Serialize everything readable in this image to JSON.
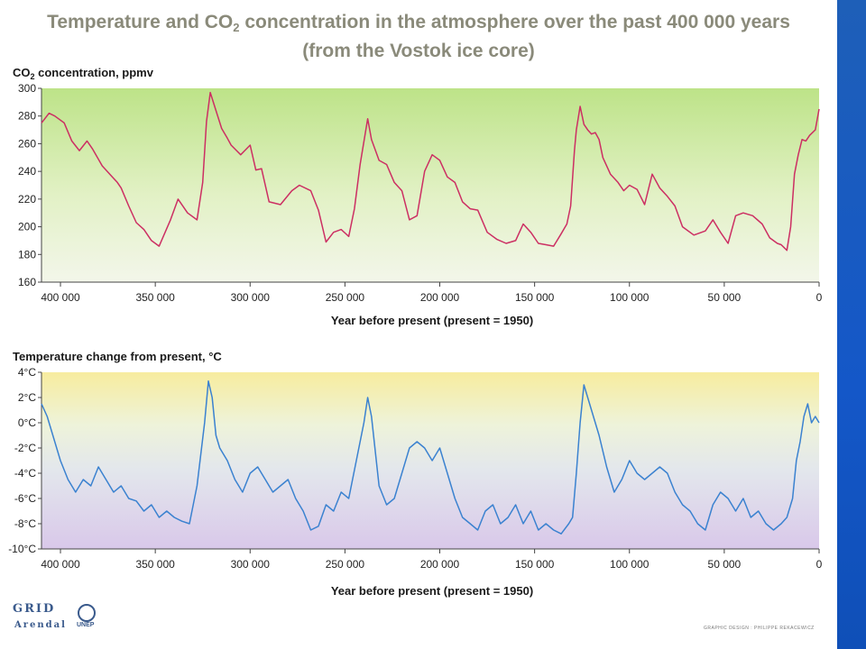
{
  "title_line1_pre": "Temperature and CO",
  "title_line1_sub": "2",
  "title_line1_post": " concentration in the atmosphere over the past 400 000 years",
  "title_line2": "(from the Vostok ice core)",
  "logo": {
    "grid": "GRID",
    "arendal": "Arendal",
    "unep": "UNEP"
  },
  "credit": "GRAPHIC DESIGN : PHILIPPE REKACEWICZ",
  "colors": {
    "co2_line": "#cc2f63",
    "temp_line": "#3b82d0",
    "right_bar": "#1457c8"
  },
  "chart_data": [
    {
      "type": "line",
      "ylabel_pre": "CO",
      "ylabel_sub": "2",
      "ylabel_post": " concentration, ppmv",
      "xlabel": "Year before present (present = 1950)",
      "xlim": [
        410000,
        0
      ],
      "ylim": [
        160,
        300
      ],
      "x_ticks": [
        400000,
        350000,
        300000,
        250000,
        200000,
        150000,
        100000,
        50000,
        0
      ],
      "x_tick_labels": [
        "400 000",
        "350 000",
        "300 000",
        "250 000",
        "200 000",
        "150 000",
        "100 000",
        "50 000",
        "0"
      ],
      "y_ticks": [
        160,
        180,
        200,
        220,
        240,
        260,
        280,
        300
      ],
      "y_tick_labels": [
        "160",
        "180",
        "200",
        "220",
        "240",
        "260",
        "280",
        "300"
      ],
      "grid": false,
      "series": [
        {
          "x": [
            410000,
            406000,
            403000,
            398000,
            394000,
            390000,
            386000,
            383000,
            378000,
            374000,
            370000,
            368000,
            364000,
            360000,
            356000,
            352000,
            348000,
            342000,
            338000,
            333000,
            328000,
            325000,
            323000,
            321000,
            318000,
            315000,
            312000,
            310000,
            305000,
            300000,
            297000,
            294000,
            290000,
            284000,
            278000,
            274000,
            268000,
            264000,
            260000,
            256000,
            252000,
            248000,
            245000,
            242000,
            238000,
            236000,
            232000,
            228000,
            224000,
            220000,
            216000,
            212000,
            208000,
            204000,
            200000,
            196000,
            192000,
            188000,
            184000,
            180000,
            175000,
            170000,
            165000,
            160000,
            156000,
            152000,
            148000,
            144000,
            140000,
            136000,
            133000,
            131000,
            129000,
            128000,
            126000,
            124000,
            122000,
            120000,
            118000,
            116000,
            114000,
            110000,
            106000,
            103000,
            100000,
            96000,
            92000,
            88000,
            84000,
            80000,
            76000,
            72000,
            66000,
            60000,
            56000,
            52000,
            48000,
            44000,
            40000,
            35000,
            30000,
            26000,
            22000,
            20000,
            17000,
            15000,
            13000,
            11000,
            9000,
            7000,
            5000,
            2000,
            0
          ],
          "y": [
            275,
            282,
            280,
            275,
            262,
            255,
            262,
            256,
            244,
            238,
            232,
            228,
            215,
            203,
            198,
            190,
            186,
            205,
            220,
            210,
            205,
            232,
            276,
            297,
            284,
            271,
            264,
            259,
            252,
            259,
            241,
            242,
            218,
            216,
            226,
            230,
            226,
            212,
            189,
            196,
            198,
            193,
            213,
            245,
            278,
            263,
            248,
            245,
            232,
            226,
            205,
            208,
            240,
            252,
            248,
            236,
            232,
            218,
            213,
            212,
            196,
            191,
            188,
            190,
            202,
            196,
            188,
            187,
            186,
            195,
            202,
            215,
            255,
            270,
            287,
            274,
            270,
            267,
            268,
            263,
            250,
            238,
            232,
            226,
            230,
            227,
            216,
            238,
            228,
            222,
            215,
            200,
            194,
            197,
            205,
            196,
            188,
            208,
            210,
            208,
            202,
            192,
            188,
            187,
            183,
            200,
            238,
            252,
            263,
            262,
            266,
            270,
            285
          ]
        }
      ]
    },
    {
      "type": "line",
      "ylabel": "Temperature change from present, °C",
      "xlabel": "Year before present (present = 1950)",
      "xlim": [
        410000,
        0
      ],
      "ylim": [
        -10,
        4
      ],
      "x_ticks": [
        400000,
        350000,
        300000,
        250000,
        200000,
        150000,
        100000,
        50000,
        0
      ],
      "x_tick_labels": [
        "400 000",
        "350 000",
        "300 000",
        "250 000",
        "200 000",
        "150 000",
        "100 000",
        "50 000",
        "0"
      ],
      "y_ticks": [
        -10,
        -8,
        -6,
        -4,
        -2,
        0,
        2,
        4
      ],
      "y_tick_labels": [
        "-10°C",
        "-8°C",
        "-6°C",
        "-4°C",
        "-2°C",
        "0°C",
        "2°C",
        "4°C"
      ],
      "grid": false,
      "series": [
        {
          "x": [
            410000,
            407000,
            404000,
            400000,
            396000,
            392000,
            388000,
            384000,
            380000,
            376000,
            372000,
            368000,
            364000,
            360000,
            356000,
            352000,
            348000,
            344000,
            340000,
            336000,
            332000,
            328000,
            324000,
            322000,
            320000,
            318000,
            316000,
            312000,
            308000,
            304000,
            300000,
            296000,
            292000,
            288000,
            284000,
            280000,
            276000,
            272000,
            268000,
            264000,
            260000,
            256000,
            252000,
            248000,
            244000,
            240000,
            238000,
            236000,
            232000,
            228000,
            224000,
            220000,
            216000,
            212000,
            208000,
            204000,
            200000,
            196000,
            192000,
            188000,
            184000,
            180000,
            176000,
            172000,
            168000,
            164000,
            160000,
            156000,
            152000,
            148000,
            144000,
            140000,
            136000,
            132000,
            130000,
            128000,
            126000,
            124000,
            120000,
            116000,
            112000,
            108000,
            104000,
            100000,
            96000,
            92000,
            88000,
            84000,
            80000,
            76000,
            72000,
            68000,
            64000,
            60000,
            56000,
            52000,
            48000,
            44000,
            40000,
            36000,
            32000,
            28000,
            24000,
            20000,
            17000,
            14000,
            12000,
            10000,
            8000,
            6000,
            4000,
            2000,
            0
          ],
          "y": [
            1.5,
            0.5,
            -1.0,
            -3.0,
            -4.5,
            -5.5,
            -4.5,
            -5.0,
            -3.5,
            -4.5,
            -5.5,
            -5.0,
            -6.0,
            -6.2,
            -7.0,
            -6.5,
            -7.5,
            -7.0,
            -7.5,
            -7.8,
            -8.0,
            -5.0,
            0.0,
            3.3,
            2.0,
            -1.0,
            -2.0,
            -3.0,
            -4.5,
            -5.5,
            -4.0,
            -3.5,
            -4.5,
            -5.5,
            -5.0,
            -4.5,
            -6.0,
            -7.0,
            -8.5,
            -8.2,
            -6.5,
            -7.0,
            -5.5,
            -6.0,
            -3.0,
            0.0,
            2.0,
            0.5,
            -5.0,
            -6.5,
            -6.0,
            -4.0,
            -2.0,
            -1.5,
            -2.0,
            -3.0,
            -2.0,
            -4.0,
            -6.0,
            -7.5,
            -8.0,
            -8.5,
            -7.0,
            -6.5,
            -8.0,
            -7.5,
            -6.5,
            -8.0,
            -7.0,
            -8.5,
            -8.0,
            -8.5,
            -8.8,
            -8.0,
            -7.5,
            -4.0,
            0.0,
            3.0,
            1.0,
            -1.0,
            -3.5,
            -5.5,
            -4.5,
            -3.0,
            -4.0,
            -4.5,
            -4.0,
            -3.5,
            -4.0,
            -5.5,
            -6.5,
            -7.0,
            -8.0,
            -8.5,
            -6.5,
            -5.5,
            -6.0,
            -7.0,
            -6.0,
            -7.5,
            -7.0,
            -8.0,
            -8.5,
            -8.0,
            -7.5,
            -6.0,
            -3.0,
            -1.5,
            0.5,
            1.5,
            0.0,
            0.5,
            0.0
          ]
        }
      ]
    }
  ]
}
